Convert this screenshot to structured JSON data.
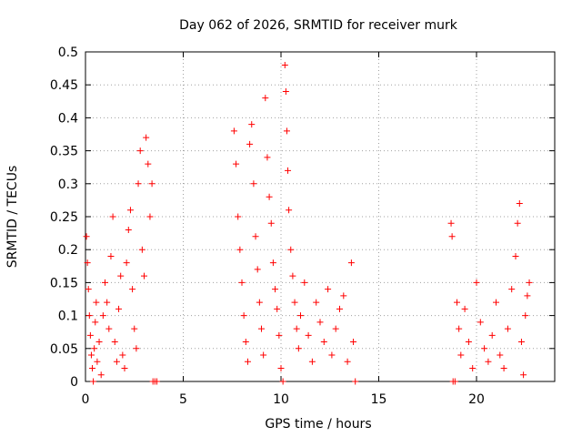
{
  "chart_data": {
    "type": "scatter",
    "title": "Day 062 of 2026, SRMTID for receiver murk",
    "xlabel": "GPS time / hours",
    "ylabel": "SRMTID / TECUs",
    "xlim": [
      0,
      24
    ],
    "ylim": [
      0,
      0.5
    ],
    "xticks": [
      0,
      5,
      10,
      15,
      20
    ],
    "xtick_labels": [
      "0",
      "5",
      "10",
      "15",
      "20"
    ],
    "yticks": [
      0,
      0.05,
      0.1,
      0.15,
      0.2,
      0.25,
      0.3,
      0.35,
      0.4,
      0.45,
      0.5
    ],
    "ytick_labels": [
      "0",
      "0.05",
      "0.1",
      "0.15",
      "0.2",
      "0.25",
      "0.3",
      "0.35",
      "0.4",
      "0.45",
      "0.5"
    ],
    "grid": true,
    "marker": "plus",
    "color": "#ff0000",
    "series": [
      {
        "name": "SRMTID",
        "points": [
          [
            0.05,
            0.22
          ],
          [
            0.1,
            0.18
          ],
          [
            0.15,
            0.14
          ],
          [
            0.2,
            0.1
          ],
          [
            0.25,
            0.07
          ],
          [
            0.3,
            0.04
          ],
          [
            0.35,
            0.02
          ],
          [
            0.4,
            0.0
          ],
          [
            0.45,
            0.05
          ],
          [
            0.5,
            0.09
          ],
          [
            0.55,
            0.12
          ],
          [
            0.6,
            0.03
          ],
          [
            0.7,
            0.06
          ],
          [
            0.8,
            0.01
          ],
          [
            0.9,
            0.1
          ],
          [
            1.0,
            0.15
          ],
          [
            1.1,
            0.12
          ],
          [
            1.2,
            0.08
          ],
          [
            1.3,
            0.19
          ],
          [
            1.4,
            0.25
          ],
          [
            1.5,
            0.06
          ],
          [
            1.6,
            0.03
          ],
          [
            1.7,
            0.11
          ],
          [
            1.8,
            0.16
          ],
          [
            1.9,
            0.04
          ],
          [
            2.0,
            0.02
          ],
          [
            2.1,
            0.18
          ],
          [
            2.2,
            0.23
          ],
          [
            2.3,
            0.26
          ],
          [
            2.4,
            0.14
          ],
          [
            2.5,
            0.08
          ],
          [
            2.6,
            0.05
          ],
          [
            2.7,
            0.3
          ],
          [
            2.8,
            0.35
          ],
          [
            2.9,
            0.2
          ],
          [
            3.0,
            0.16
          ],
          [
            3.1,
            0.37
          ],
          [
            3.2,
            0.33
          ],
          [
            3.3,
            0.25
          ],
          [
            3.4,
            0.3
          ],
          [
            3.45,
            0.0
          ],
          [
            3.55,
            0.0
          ],
          [
            3.65,
            0.0
          ],
          [
            7.6,
            0.38
          ],
          [
            7.7,
            0.33
          ],
          [
            7.8,
            0.25
          ],
          [
            7.9,
            0.2
          ],
          [
            8.0,
            0.15
          ],
          [
            8.1,
            0.1
          ],
          [
            8.2,
            0.06
          ],
          [
            8.3,
            0.03
          ],
          [
            8.4,
            0.36
          ],
          [
            8.5,
            0.39
          ],
          [
            8.6,
            0.3
          ],
          [
            8.7,
            0.22
          ],
          [
            8.8,
            0.17
          ],
          [
            8.9,
            0.12
          ],
          [
            9.0,
            0.08
          ],
          [
            9.1,
            0.04
          ],
          [
            9.2,
            0.43
          ],
          [
            9.3,
            0.34
          ],
          [
            9.4,
            0.28
          ],
          [
            9.5,
            0.24
          ],
          [
            9.6,
            0.18
          ],
          [
            9.7,
            0.14
          ],
          [
            9.8,
            0.11
          ],
          [
            9.9,
            0.07
          ],
          [
            10.0,
            0.02
          ],
          [
            10.1,
            0.0
          ],
          [
            10.2,
            0.48
          ],
          [
            10.25,
            0.44
          ],
          [
            10.3,
            0.38
          ],
          [
            10.35,
            0.32
          ],
          [
            10.4,
            0.26
          ],
          [
            10.5,
            0.2
          ],
          [
            10.6,
            0.16
          ],
          [
            10.7,
            0.12
          ],
          [
            10.8,
            0.08
          ],
          [
            10.9,
            0.05
          ],
          [
            11.0,
            0.1
          ],
          [
            11.2,
            0.15
          ],
          [
            11.4,
            0.07
          ],
          [
            11.6,
            0.03
          ],
          [
            11.8,
            0.12
          ],
          [
            12.0,
            0.09
          ],
          [
            12.2,
            0.06
          ],
          [
            12.4,
            0.14
          ],
          [
            12.6,
            0.04
          ],
          [
            12.8,
            0.08
          ],
          [
            13.0,
            0.11
          ],
          [
            13.2,
            0.13
          ],
          [
            13.4,
            0.03
          ],
          [
            13.6,
            0.18
          ],
          [
            13.7,
            0.06
          ],
          [
            13.8,
            0.0
          ],
          [
            18.7,
            0.24
          ],
          [
            18.75,
            0.22
          ],
          [
            18.8,
            0.0
          ],
          [
            18.9,
            0.0
          ],
          [
            19.0,
            0.12
          ],
          [
            19.1,
            0.08
          ],
          [
            19.2,
            0.04
          ],
          [
            19.4,
            0.11
          ],
          [
            19.6,
            0.06
          ],
          [
            19.8,
            0.02
          ],
          [
            20.0,
            0.15
          ],
          [
            20.2,
            0.09
          ],
          [
            20.4,
            0.05
          ],
          [
            20.6,
            0.03
          ],
          [
            20.8,
            0.07
          ],
          [
            21.0,
            0.12
          ],
          [
            21.2,
            0.04
          ],
          [
            21.4,
            0.02
          ],
          [
            21.6,
            0.08
          ],
          [
            21.8,
            0.14
          ],
          [
            22.0,
            0.19
          ],
          [
            22.1,
            0.24
          ],
          [
            22.2,
            0.27
          ],
          [
            22.3,
            0.06
          ],
          [
            22.4,
            0.01
          ],
          [
            22.5,
            0.1
          ],
          [
            22.6,
            0.13
          ],
          [
            22.7,
            0.15
          ]
        ]
      }
    ]
  }
}
